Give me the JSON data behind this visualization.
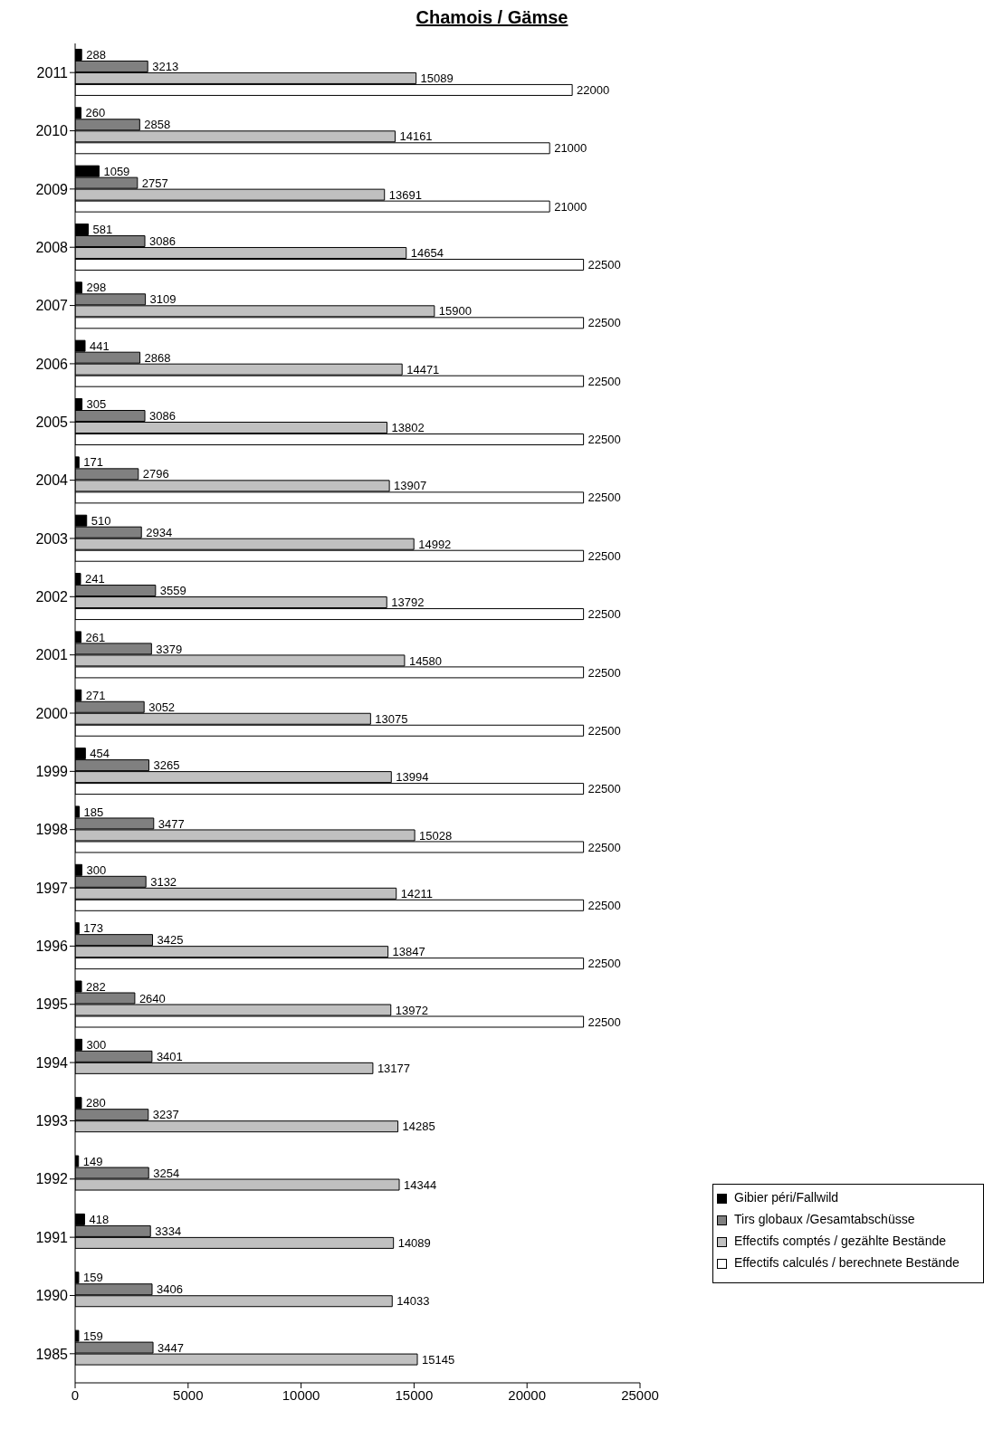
{
  "chart_data": {
    "type": "bar",
    "orientation": "horizontal",
    "title": "Chamois / Gämse",
    "categories": [
      "2011",
      "2010",
      "2009",
      "2008",
      "2007",
      "2006",
      "2005",
      "2004",
      "2003",
      "2002",
      "2001",
      "2000",
      "1999",
      "1998",
      "1997",
      "1996",
      "1995",
      "1994",
      "1993",
      "1992",
      "1991",
      "1990",
      "1985"
    ],
    "series": [
      {
        "name": "Gibier péri/Fallwild",
        "color": "#000000",
        "values": [
          288,
          260,
          1059,
          581,
          298,
          441,
          305,
          171,
          510,
          241,
          261,
          271,
          454,
          185,
          300,
          173,
          282,
          300,
          280,
          149,
          418,
          159,
          159
        ]
      },
      {
        "name": "Tirs globaux /Gesamtabschüsse",
        "color": "#808080",
        "values": [
          3213,
          2858,
          2757,
          3086,
          3109,
          2868,
          3086,
          2796,
          2934,
          3559,
          3379,
          3052,
          3265,
          3477,
          3132,
          3425,
          2640,
          3401,
          3237,
          3254,
          3334,
          3406,
          3447
        ]
      },
      {
        "name": "Effectifs comptés / gezählte Bestände",
        "color": "#c0c0c0",
        "values": [
          15089,
          14161,
          13691,
          14654,
          15900,
          14471,
          13802,
          13907,
          14992,
          13792,
          14580,
          13075,
          13994,
          15028,
          14211,
          13847,
          13972,
          13177,
          14285,
          14344,
          14089,
          14033,
          15145
        ]
      },
      {
        "name": "Effectifs calculés / berechnete Bestände",
        "color": "#ffffff",
        "values": [
          22000,
          21000,
          21000,
          22500,
          22500,
          22500,
          22500,
          22500,
          22500,
          22500,
          22500,
          22500,
          22500,
          22500,
          22500,
          22500,
          22500,
          null,
          null,
          null,
          null,
          null,
          null
        ]
      }
    ],
    "xlim": [
      0,
      25000
    ],
    "xticks": [
      0,
      5000,
      10000,
      15000,
      20000,
      25000
    ],
    "data_labels": true,
    "grid": false,
    "legend": "bottom right"
  }
}
